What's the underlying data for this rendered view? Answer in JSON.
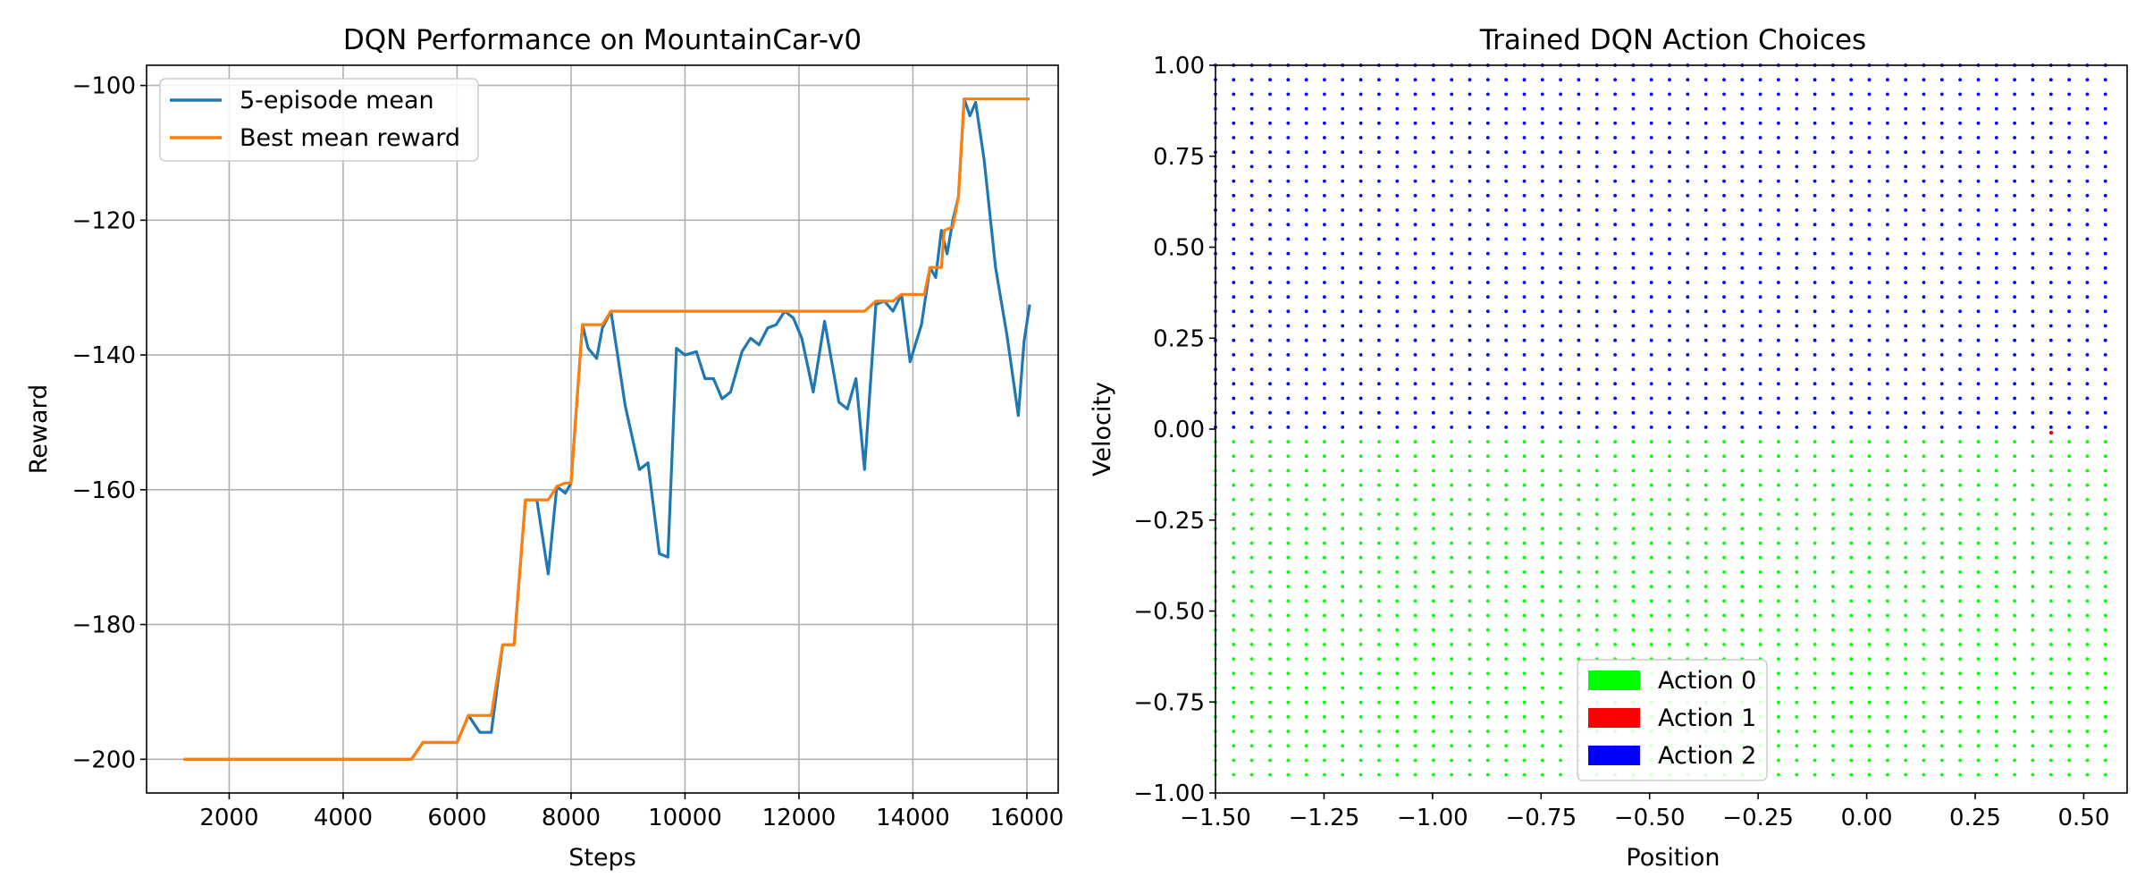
{
  "chart_data": [
    {
      "type": "line",
      "title": "DQN Performance on MountainCar-v0",
      "xlabel": "Steps",
      "ylabel": "Reward",
      "xlim": [
        550,
        16550
      ],
      "ylim": [
        -205,
        -97
      ],
      "x_ticks": [
        2000,
        4000,
        6000,
        8000,
        10000,
        12000,
        14000,
        16000
      ],
      "x_tick_labels": [
        "2000",
        "4000",
        "6000",
        "8000",
        "10000",
        "12000",
        "14000",
        "16000"
      ],
      "y_ticks": [
        -200,
        -180,
        -160,
        -140,
        -120,
        -100
      ],
      "y_tick_labels": [
        "−200",
        "−180",
        "−160",
        "−140",
        "−120",
        "−100"
      ],
      "grid": true,
      "legend_position": "top-left",
      "series": [
        {
          "name": "5-episode mean",
          "color": "#1f77b4",
          "points": [
            [
              1200,
              -200
            ],
            [
              5200,
              -200
            ],
            [
              5400,
              -197.5
            ],
            [
              6000,
              -197.5
            ],
            [
              6200,
              -193.5
            ],
            [
              6400,
              -196
            ],
            [
              6600,
              -196
            ],
            [
              6800,
              -183
            ],
            [
              7000,
              -183
            ],
            [
              7200,
              -161.5
            ],
            [
              7400,
              -161.5
            ],
            [
              7600,
              -172.5
            ],
            [
              7750,
              -159.5
            ],
            [
              7900,
              -160.5
            ],
            [
              8000,
              -159
            ],
            [
              8200,
              -135.5
            ],
            [
              8300,
              -139
            ],
            [
              8450,
              -140.5
            ],
            [
              8550,
              -136
            ],
            [
              8700,
              -133.5
            ],
            [
              8950,
              -147.5
            ],
            [
              9200,
              -157
            ],
            [
              9350,
              -156
            ],
            [
              9550,
              -169.5
            ],
            [
              9700,
              -170
            ],
            [
              9850,
              -139
            ],
            [
              10000,
              -140
            ],
            [
              10200,
              -139.5
            ],
            [
              10350,
              -143.5
            ],
            [
              10500,
              -143.5
            ],
            [
              10650,
              -146.5
            ],
            [
              10800,
              -145.5
            ],
            [
              11000,
              -139.5
            ],
            [
              11150,
              -137.5
            ],
            [
              11300,
              -138.5
            ],
            [
              11450,
              -136
            ],
            [
              11600,
              -135.5
            ],
            [
              11750,
              -133.5
            ],
            [
              11900,
              -134.5
            ],
            [
              12050,
              -137.5
            ],
            [
              12250,
              -145.5
            ],
            [
              12450,
              -135
            ],
            [
              12700,
              -147
            ],
            [
              12850,
              -148
            ],
            [
              13000,
              -143.5
            ],
            [
              13150,
              -157
            ],
            [
              13350,
              -132.5
            ],
            [
              13500,
              -132
            ],
            [
              13650,
              -133.5
            ],
            [
              13800,
              -131
            ],
            [
              13950,
              -141
            ],
            [
              14150,
              -135.5
            ],
            [
              14300,
              -127
            ],
            [
              14400,
              -128.5
            ],
            [
              14500,
              -121.5
            ],
            [
              14600,
              -125
            ],
            [
              14700,
              -120
            ],
            [
              14800,
              -116.5
            ],
            [
              14900,
              -102
            ],
            [
              15000,
              -104.5
            ],
            [
              15100,
              -102.5
            ],
            [
              15250,
              -111
            ],
            [
              15450,
              -127
            ],
            [
              15650,
              -137
            ],
            [
              15850,
              -149
            ],
            [
              15950,
              -138
            ],
            [
              16050,
              -132.5
            ]
          ]
        },
        {
          "name": "Best mean reward",
          "color": "#ff7f0e",
          "points": [
            [
              1200,
              -200
            ],
            [
              5200,
              -200
            ],
            [
              5400,
              -197.5
            ],
            [
              6000,
              -197.5
            ],
            [
              6200,
              -193.5
            ],
            [
              6600,
              -193.5
            ],
            [
              6800,
              -183
            ],
            [
              7000,
              -183
            ],
            [
              7200,
              -161.5
            ],
            [
              7600,
              -161.5
            ],
            [
              7750,
              -159.5
            ],
            [
              7900,
              -159
            ],
            [
              8000,
              -159
            ],
            [
              8200,
              -135.5
            ],
            [
              8550,
              -135.5
            ],
            [
              8700,
              -133.5
            ],
            [
              11550,
              -133.5
            ],
            [
              11750,
              -133.5
            ],
            [
              13150,
              -133.5
            ],
            [
              13350,
              -132
            ],
            [
              13650,
              -132
            ],
            [
              13800,
              -131
            ],
            [
              14200,
              -131
            ],
            [
              14300,
              -127
            ],
            [
              14500,
              -127
            ],
            [
              14550,
              -121.5
            ],
            [
              14700,
              -121
            ],
            [
              14800,
              -116.5
            ],
            [
              14900,
              -102
            ],
            [
              16050,
              -102
            ]
          ]
        }
      ]
    },
    {
      "type": "scatter",
      "title": "Trained DQN Action Choices",
      "xlabel": "Position",
      "ylabel": "Velocity",
      "xlim": [
        -1.5,
        0.6
      ],
      "ylim": [
        -1.0,
        1.0
      ],
      "x_ticks": [
        -1.5,
        -1.25,
        -1.0,
        -0.75,
        -0.5,
        -0.25,
        0.0,
        0.25,
        0.5
      ],
      "x_tick_labels": [
        "−1.50",
        "−1.25",
        "−1.00",
        "−0.75",
        "−0.50",
        "−0.25",
        "0.00",
        "0.25",
        "0.50"
      ],
      "y_ticks": [
        -1.0,
        -0.75,
        -0.5,
        -0.25,
        0.0,
        0.25,
        0.5,
        0.75,
        1.0
      ],
      "y_tick_labels": [
        "−1.00",
        "−0.75",
        "−0.50",
        "−0.25",
        "0.00",
        "0.25",
        "0.50",
        "0.75",
        "1.00"
      ],
      "grid": false,
      "legend_position": "lower-center",
      "grid_sampling": {
        "x_start": -1.5,
        "x_end": 0.55,
        "x_count": 50,
        "y_start": -0.95,
        "y_end": 1.0,
        "y_count": 50
      },
      "action_regions": [
        {
          "action": "Action 0",
          "rule": "velocity < 0"
        },
        {
          "action": "Action 2",
          "rule": "velocity >= 0"
        }
      ],
      "exceptions": [
        {
          "position": 0.425,
          "velocity": -0.01,
          "action": "Action 1"
        }
      ],
      "legend": [
        {
          "label": "Action 0",
          "color": "#00ff00"
        },
        {
          "label": "Action 1",
          "color": "#ff0000"
        },
        {
          "label": "Action 2",
          "color": "#0000ff"
        }
      ]
    }
  ]
}
